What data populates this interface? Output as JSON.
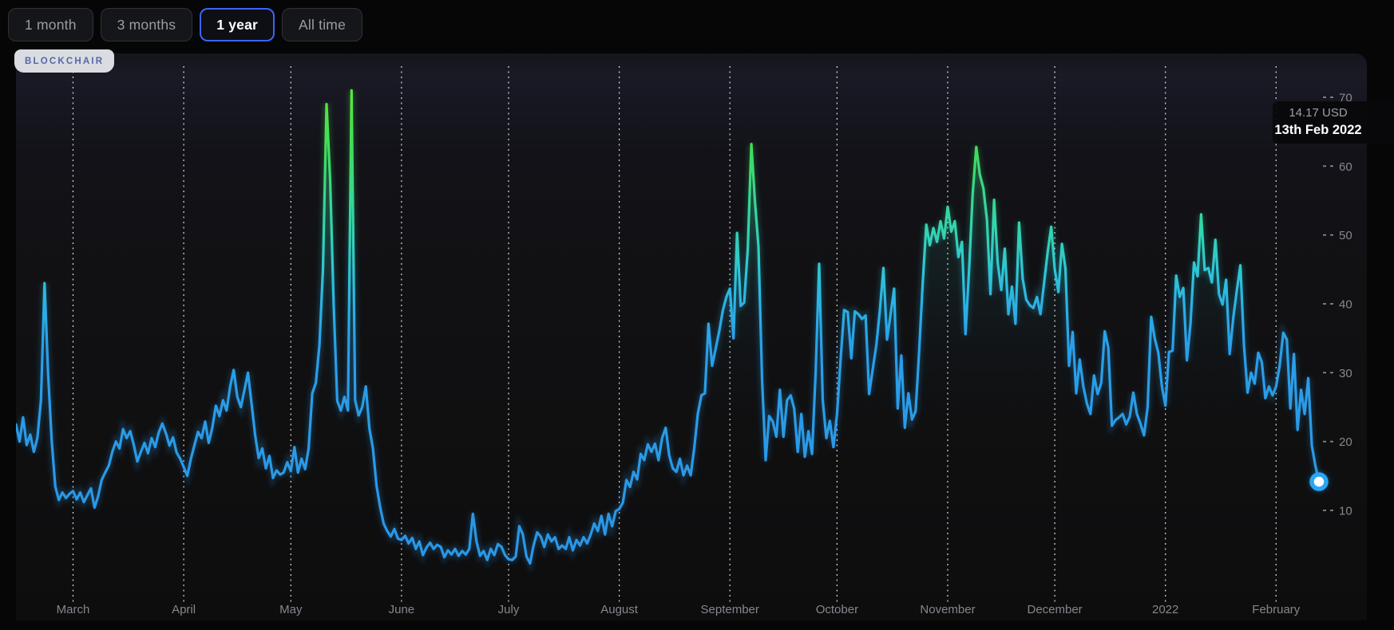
{
  "time_range_selector": {
    "options": [
      {
        "label": "1 month",
        "active": false
      },
      {
        "label": "3 months",
        "active": false
      },
      {
        "label": "1 year",
        "active": true
      },
      {
        "label": "All time",
        "active": false
      }
    ]
  },
  "watermark": {
    "label": "BLOCKCHAIR"
  },
  "tooltip": {
    "value": "14.17 USD",
    "date": "13th Feb 2022"
  },
  "colors": {
    "active_range_border": "#3b64f6",
    "page_background": "#060607",
    "chart_background": "#121216",
    "grid_line": "#ffffff",
    "axis_text": "#85878d",
    "tooltip_value_text": "#9aa0a6",
    "tooltip_date_text": "#ffffff",
    "marker_fill": "#ffffff",
    "marker_ring": "#27a7f5",
    "line_low": "#2a9fe8",
    "line_mid": "#32d3b4",
    "line_high": "#56e73b"
  },
  "chart_data": {
    "type": "line",
    "unit": "USD",
    "grid": "vertical-dashed-monthly",
    "legend": "none",
    "x_axis": {
      "labels": [
        "March",
        "April",
        "May",
        "June",
        "July",
        "August",
        "September",
        "October",
        "November",
        "December",
        "2022",
        "February"
      ],
      "dates": [
        "2021-03-01",
        "2021-04-01",
        "2021-05-01",
        "2021-06-01",
        "2021-07-01",
        "2021-08-01",
        "2021-09-01",
        "2021-10-01",
        "2021-11-01",
        "2021-12-01",
        "2022-01-01",
        "2022-02-01"
      ]
    },
    "y_axis": {
      "side": "right",
      "ticks": [
        70,
        60,
        50,
        40,
        30,
        20,
        10
      ],
      "range": [
        2,
        72
      ]
    },
    "highlight_point": {
      "date": "2022-02-13",
      "value": 14.17
    },
    "series": {
      "start": "2021-02-13",
      "end": "2022-02-13",
      "interval_days": 1,
      "values": [
        22.5,
        20,
        23.5,
        19.5,
        21,
        18.5,
        20.5,
        26,
        43,
        30,
        20.2,
        13.5,
        11.5,
        12.6,
        11.8,
        12.4,
        12.8,
        11.6,
        12.6,
        11.2,
        12.2,
        13.2,
        10.4,
        12,
        14.4,
        15.5,
        16.5,
        18.5,
        20,
        19,
        21.8,
        20.5,
        21.5,
        19.5,
        17.1,
        18.5,
        19.8,
        18.3,
        20.5,
        19.2,
        21.3,
        22.6,
        21.2,
        19.4,
        20.6,
        18.4,
        17.5,
        16.3,
        15,
        17.5,
        19.5,
        21.4,
        20.5,
        22.9,
        19.8,
        22,
        25.2,
        23.7,
        26,
        24.5,
        28,
        30.4,
        26.5,
        25,
        27.5,
        30,
        25.5,
        20.9,
        17.6,
        19,
        16.1,
        17.9,
        14.7,
        15.8,
        15.2,
        15.5,
        17,
        15.7,
        19.2,
        15.5,
        17.5,
        16,
        19,
        27,
        28.5,
        34,
        45,
        69,
        58,
        40,
        25.9,
        24.5,
        26.5,
        24.5,
        71,
        26,
        23.8,
        25,
        28,
        21.9,
        19,
        13.6,
        10.5,
        8.1,
        7,
        6.2,
        7.3,
        5.9,
        5.7,
        6.3,
        5.2,
        6,
        4.4,
        5.5,
        3.5,
        4.6,
        5.3,
        4.4,
        5,
        4.7,
        3.2,
        4.2,
        3.6,
        4.4,
        3.4,
        4.1,
        3.6,
        4.4,
        9.5,
        5.5,
        3.4,
        4.1,
        2.8,
        4.4,
        3.5,
        5.1,
        4.7,
        3.5,
        2.9,
        2.8,
        3.3,
        7.7,
        6.5,
        3.3,
        2.3,
        4.9,
        6.8,
        6.2,
        4.7,
        6.5,
        5.5,
        6.1,
        4.4,
        4.9,
        4.4,
        6.1,
        4.2,
        5.7,
        4.9,
        6.1,
        5.2,
        6.5,
        8.1,
        7,
        9.2,
        6.5,
        9.5,
        7.7,
        9.9,
        10.2,
        11.1,
        14.4,
        13.4,
        15.6,
        14.5,
        18.2,
        17.3,
        19.6,
        18.5,
        19.7,
        17.3,
        20.5,
        22,
        18,
        16.1,
        15.6,
        17.5,
        15.1,
        16.5,
        15.1,
        19,
        24,
        26.7,
        27,
        37.1,
        31,
        33.5,
        36,
        39,
        41,
        42.2,
        35,
        50.3,
        39.7,
        40.2,
        48,
        63.2,
        55,
        48.3,
        29,
        17.3,
        23.7,
        22.9,
        20.7,
        27.5,
        20.7,
        26,
        26.7,
        24.8,
        18.5,
        24,
        17.8,
        21.5,
        18.2,
        30,
        45.8,
        26,
        20.5,
        23,
        19.2,
        24,
        32,
        39.1,
        38.8,
        32.1,
        38.9,
        38.5,
        37.8,
        38.3,
        26.9,
        30.5,
        34,
        39,
        45.2,
        34.8,
        38.5,
        42.2,
        24.8,
        32.5,
        22,
        27,
        23.2,
        24.4,
        33,
        43,
        51.5,
        48.5,
        51,
        49,
        52,
        49.5,
        54.1,
        50.5,
        52,
        46.8,
        49,
        35.6,
        45,
        56,
        62.8,
        58.8,
        56.8,
        52.2,
        41.4,
        55.1,
        46,
        42,
        48,
        38.5,
        42.5,
        37.1,
        51.8,
        43.7,
        40.6,
        39.8,
        39.4,
        41,
        38.5,
        43,
        47.5,
        51.2,
        45,
        41.7,
        48.7,
        45.1,
        31,
        35.9,
        27,
        31.9,
        28,
        25.5,
        24,
        29.6,
        26.9,
        28.5,
        36,
        33.6,
        22.3,
        23.1,
        23.5,
        24,
        22.5,
        23.6,
        27.1,
        24,
        22.6,
        20.9,
        25,
        38.1,
        35,
        32.9,
        28,
        25.2,
        33,
        33.2,
        44.1,
        41,
        42.3,
        31.8,
        37,
        46,
        44,
        53,
        44.9,
        45.2,
        43.1,
        49.3,
        41.4,
        39.9,
        43.5,
        32.7,
        38,
        42,
        45.6,
        34,
        27.1,
        30,
        28.4,
        32.9,
        31.5,
        26.3,
        28,
        26.7,
        28,
        31,
        35.8,
        34.8,
        24.8,
        32.7,
        21.7,
        27.5,
        24,
        29.2,
        19.4,
        16.5,
        14.17
      ]
    }
  }
}
